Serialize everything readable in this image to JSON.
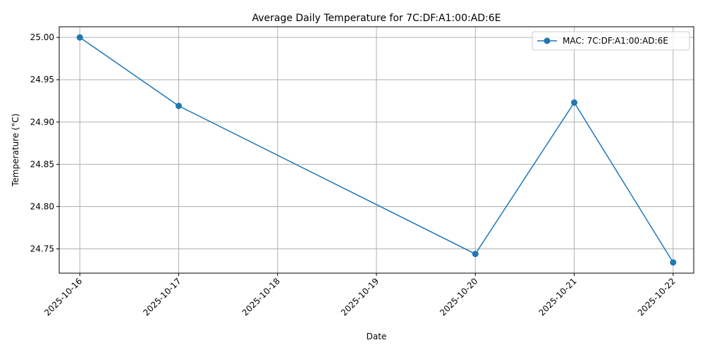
{
  "chart_data": {
    "type": "line",
    "title": "Average Daily Temperature for 7C:DF:A1:00:AD:6E",
    "xlabel": "Date",
    "ylabel": "Temperature (°C)",
    "x_ticks": [
      "2025-10-16",
      "2025-10-17",
      "2025-10-18",
      "2025-10-19",
      "2025-10-20",
      "2025-10-21",
      "2025-10-22"
    ],
    "y_ticks": [
      "24.75",
      "24.80",
      "24.85",
      "24.90",
      "24.95",
      "25.00"
    ],
    "ylim": [
      24.7213,
      25.0126
    ],
    "xlim": [
      "2025-10-15T19:00",
      "2025-10-22T05:00"
    ],
    "grid": true,
    "legend_position": "upper right",
    "series": [
      {
        "name": "MAC: 7C:DF:A1:00:AD:6E",
        "color": "#1f77b4",
        "marker": "circle",
        "points": [
          {
            "x": "2025-10-16",
            "y": 25.0
          },
          {
            "x": "2025-10-17",
            "y": 24.919
          },
          {
            "x": "2025-10-20",
            "y": 24.744
          },
          {
            "x": "2025-10-21",
            "y": 24.923
          },
          {
            "x": "2025-10-22",
            "y": 24.734
          }
        ]
      }
    ]
  }
}
